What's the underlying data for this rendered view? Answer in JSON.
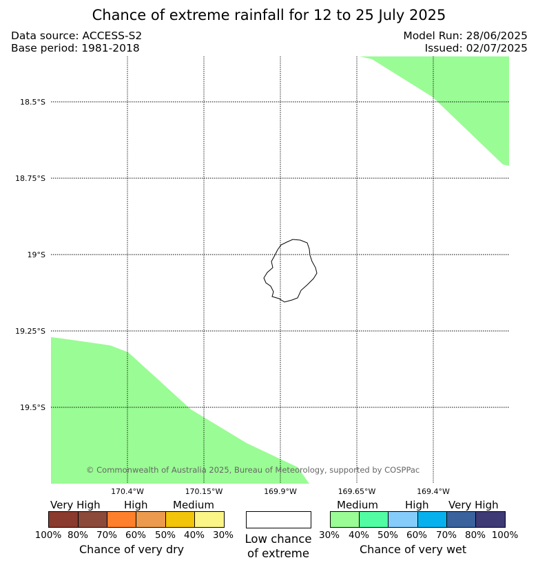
{
  "title": "Chance of extreme rainfall for 12 to 25 July 2025",
  "data_source": "Data source: ACCESS-S2",
  "base_period": "Base period: 1981-2018",
  "model_run": "Model Run: 28/06/2025",
  "issued": "Issued: 02/07/2025",
  "credit": "© Commonwealth of Australia 2025, Bureau of Meteorology, supported by COSPPac",
  "latitudes": [
    "18.5°S",
    "18.75°S",
    "19°S",
    "19.25°S",
    "19.5°S"
  ],
  "longitudes": [
    "170.4°W",
    "170.15°W",
    "169.9°W",
    "169.65°W",
    "169.4°W"
  ],
  "dry_scale": {
    "caption": "Chance of very dry",
    "levels": [
      "Very High",
      "High",
      "Medium"
    ],
    "percent_labels": [
      "100%",
      "80%",
      "70%",
      "60%",
      "50%",
      "40%",
      "30%"
    ],
    "colors": [
      "#8b3a2e",
      "#8b4a3a",
      "#fe7f2c",
      "#ec9b4e",
      "#f2c40a",
      "#fbf487"
    ]
  },
  "low_chance": "Low chance of extreme",
  "wet_scale": {
    "caption": "Chance of very wet",
    "levels": [
      "Medium",
      "High",
      "Very High"
    ],
    "percent_labels": [
      "30%",
      "40%",
      "50%",
      "60%",
      "70%",
      "80%",
      "100%"
    ],
    "colors": [
      "#9afc94",
      "#52fca2",
      "#85ccfb",
      "#07b1ee",
      "#3a629d",
      "#3d3a76"
    ]
  },
  "map_regions": [
    {
      "category": "Medium chance of very wet",
      "color": "#9afc94",
      "location": "north-east corner"
    },
    {
      "category": "Medium chance of very wet",
      "color": "#9afc94",
      "location": "south-west corner"
    }
  ],
  "land_feature": "island outline"
}
